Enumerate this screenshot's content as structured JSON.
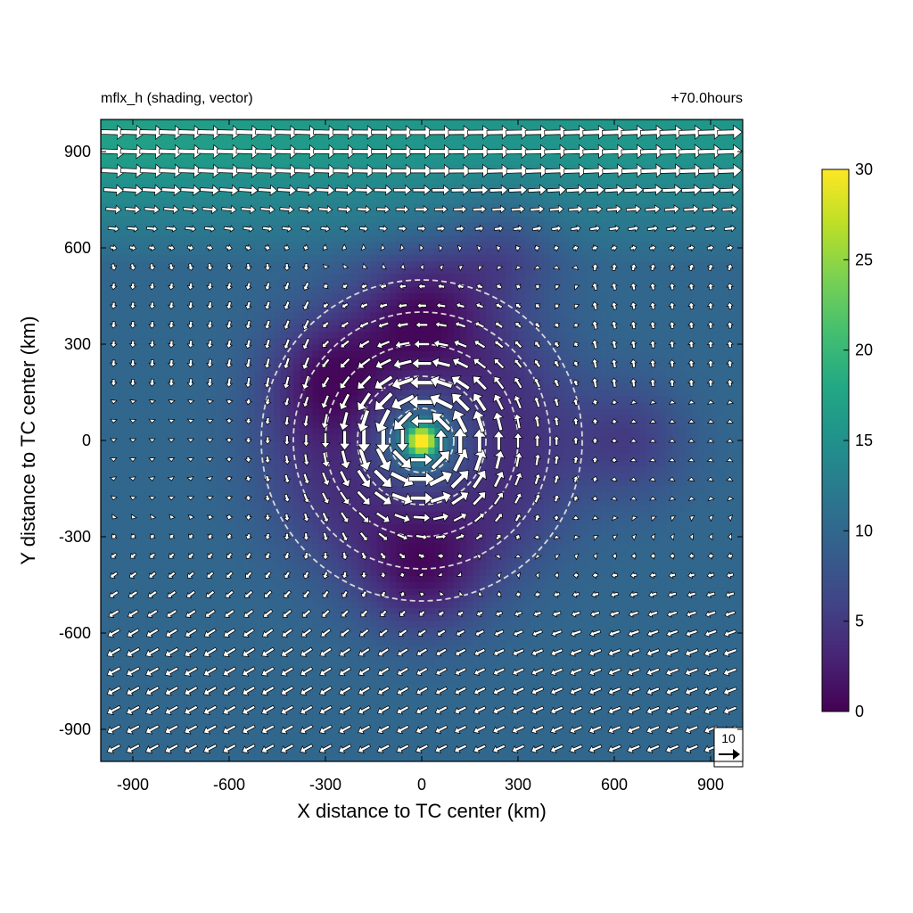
{
  "chart_data": {
    "type": "heatmap",
    "left_title": "mflx_h (shading, vector)",
    "right_title": "+70.0hours",
    "xlabel": "X distance to TC center (km)",
    "ylabel": "Y distance to TC center (km)",
    "xlim": [
      -1000,
      1000
    ],
    "ylim": [
      -1000,
      1000
    ],
    "xticks": [
      -900,
      -600,
      -300,
      0,
      300,
      600,
      900
    ],
    "yticks": [
      -900,
      -600,
      -300,
      0,
      300,
      600,
      900
    ],
    "colorbar": {
      "colormap": "viridis",
      "range": [
        0,
        30
      ],
      "ticks": [
        0,
        5,
        10,
        15,
        20,
        25,
        30
      ]
    },
    "reference_vector": {
      "label": "10",
      "magnitude": 10
    },
    "range_rings_km": [
      100,
      200,
      300,
      400,
      500
    ],
    "vector_grid_spacing_km": 60,
    "shading_description": {
      "background_value": 10,
      "northern_jet": {
        "peak_value": 17,
        "y_start_km": 550
      },
      "core_max": {
        "value": 28,
        "x_km": 0,
        "y_km": 0
      },
      "minima": [
        {
          "x_km": 0,
          "y_km": 420,
          "value": 1
        },
        {
          "x_km": 0,
          "y_km": -430,
          "value": 1
        },
        {
          "x_km": -300,
          "y_km": 200,
          "value": 2
        },
        {
          "x_km": 650,
          "y_km": 0,
          "value": 2
        },
        {
          "x_km": 250,
          "y_km": 600,
          "value": 3
        }
      ]
    },
    "grid": false
  }
}
